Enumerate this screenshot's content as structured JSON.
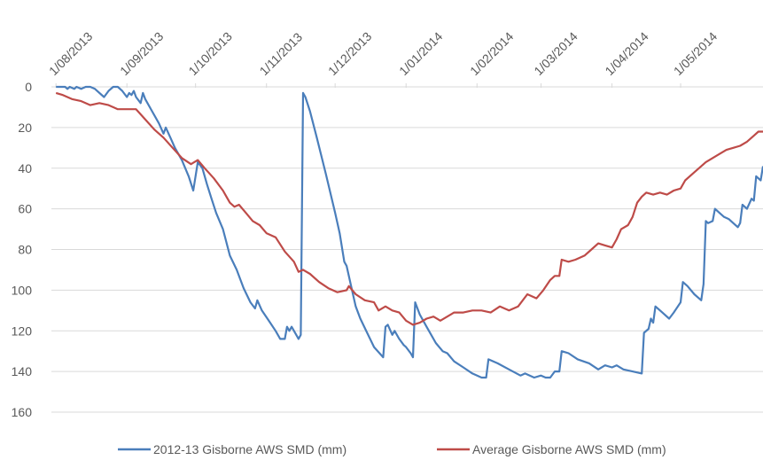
{
  "chart_data": {
    "type": "line",
    "title": "",
    "xlabel": "",
    "ylabel": "",
    "x_ticks": [
      "1/08/2013",
      "1/09/2013",
      "1/10/2013",
      "1/11/2013",
      "1/12/2013",
      "1/01/2014",
      "1/02/2014",
      "1/03/2014",
      "1/04/2014",
      "1/05/2014"
    ],
    "y_ticks": [
      0,
      20,
      40,
      60,
      80,
      100,
      120,
      140,
      160
    ],
    "ylim": [
      0,
      160
    ],
    "y_reversed": true,
    "grid": "horizontal",
    "legend_position": "bottom",
    "series": [
      {
        "name": "2012-13 Gisborne AWS SMD (mm)",
        "color": "#4a7ebb",
        "points": [
          [
            "2013-08-01",
            0
          ],
          [
            "2013-08-05",
            0
          ],
          [
            "2013-08-06",
            1
          ],
          [
            "2013-08-07",
            0
          ],
          [
            "2013-08-09",
            1
          ],
          [
            "2013-08-10",
            0
          ],
          [
            "2013-08-11",
            0.5
          ],
          [
            "2013-08-12",
            1
          ],
          [
            "2013-08-14",
            0
          ],
          [
            "2013-08-16",
            0
          ],
          [
            "2013-08-18",
            1
          ],
          [
            "2013-08-22",
            5
          ],
          [
            "2013-08-24",
            2
          ],
          [
            "2013-08-26",
            0
          ],
          [
            "2013-08-28",
            0
          ],
          [
            "2013-08-30",
            2
          ],
          [
            "2013-09-01",
            5
          ],
          [
            "2013-09-02",
            3
          ],
          [
            "2013-09-03",
            4
          ],
          [
            "2013-09-04",
            2
          ],
          [
            "2013-09-05",
            5
          ],
          [
            "2013-09-07",
            8
          ],
          [
            "2013-09-08",
            3
          ],
          [
            "2013-09-09",
            6
          ],
          [
            "2013-09-12",
            12
          ],
          [
            "2013-09-15",
            18
          ],
          [
            "2013-09-17",
            23
          ],
          [
            "2013-09-18",
            20
          ],
          [
            "2013-09-20",
            25
          ],
          [
            "2013-09-22",
            30
          ],
          [
            "2013-09-25",
            36
          ],
          [
            "2013-09-28",
            44
          ],
          [
            "2013-09-30",
            51
          ],
          [
            "2013-10-02",
            37
          ],
          [
            "2013-10-04",
            40
          ],
          [
            "2013-10-06",
            48
          ],
          [
            "2013-10-08",
            55
          ],
          [
            "2013-10-10",
            62
          ],
          [
            "2013-10-13",
            70
          ],
          [
            "2013-10-16",
            83
          ],
          [
            "2013-10-19",
            90
          ],
          [
            "2013-10-22",
            99
          ],
          [
            "2013-10-25",
            106
          ],
          [
            "2013-10-27",
            109
          ],
          [
            "2013-10-28",
            105
          ],
          [
            "2013-10-30",
            110
          ],
          [
            "2013-11-02",
            115
          ],
          [
            "2013-11-05",
            120
          ],
          [
            "2013-11-07",
            124
          ],
          [
            "2013-11-09",
            124
          ],
          [
            "2013-11-10",
            118
          ],
          [
            "2013-11-11",
            120
          ],
          [
            "2013-11-12",
            118
          ],
          [
            "2013-11-14",
            122
          ],
          [
            "2013-11-15",
            124
          ],
          [
            "2013-11-16",
            122
          ],
          [
            "2013-11-17",
            3
          ],
          [
            "2013-11-18",
            5
          ],
          [
            "2013-11-20",
            12
          ],
          [
            "2013-11-23",
            25
          ],
          [
            "2013-11-27",
            43
          ],
          [
            "2013-12-01",
            62
          ],
          [
            "2013-12-03",
            72
          ],
          [
            "2013-12-05",
            86
          ],
          [
            "2013-12-06",
            88
          ],
          [
            "2013-12-08",
            98
          ],
          [
            "2013-12-10",
            108
          ],
          [
            "2013-12-12",
            114
          ],
          [
            "2013-12-15",
            121
          ],
          [
            "2013-12-18",
            128
          ],
          [
            "2013-12-22",
            133
          ],
          [
            "2013-12-23",
            118
          ],
          [
            "2013-12-24",
            117
          ],
          [
            "2013-12-26",
            122
          ],
          [
            "2013-12-27",
            120
          ],
          [
            "2013-12-29",
            124
          ],
          [
            "2013-12-31",
            127
          ],
          [
            "2014-01-01",
            128
          ],
          [
            "2014-01-03",
            131
          ],
          [
            "2014-01-04",
            133
          ],
          [
            "2014-01-05",
            106
          ],
          [
            "2014-01-07",
            112
          ],
          [
            "2014-01-10",
            118
          ],
          [
            "2014-01-14",
            126
          ],
          [
            "2014-01-17",
            130
          ],
          [
            "2014-01-19",
            131
          ],
          [
            "2014-01-22",
            135
          ],
          [
            "2014-01-26",
            138
          ],
          [
            "2014-01-30",
            141
          ],
          [
            "2014-02-03",
            143
          ],
          [
            "2014-02-05",
            143
          ],
          [
            "2014-02-06",
            134
          ],
          [
            "2014-02-10",
            136
          ],
          [
            "2014-02-15",
            139
          ],
          [
            "2014-02-20",
            142
          ],
          [
            "2014-02-22",
            141
          ],
          [
            "2014-02-26",
            143
          ],
          [
            "2014-03-01",
            142
          ],
          [
            "2014-03-03",
            143
          ],
          [
            "2014-03-05",
            143
          ],
          [
            "2014-03-07",
            140
          ],
          [
            "2014-03-09",
            140
          ],
          [
            "2014-03-10",
            130
          ],
          [
            "2014-03-13",
            131
          ],
          [
            "2014-03-17",
            134
          ],
          [
            "2014-03-22",
            136
          ],
          [
            "2014-03-26",
            139
          ],
          [
            "2014-03-29",
            137
          ],
          [
            "2014-04-01",
            138
          ],
          [
            "2014-04-03",
            137
          ],
          [
            "2014-04-06",
            139
          ],
          [
            "2014-04-10",
            140
          ],
          [
            "2014-04-14",
            141
          ],
          [
            "2014-04-15",
            121
          ],
          [
            "2014-04-17",
            119
          ],
          [
            "2014-04-18",
            114
          ],
          [
            "2014-04-19",
            116
          ],
          [
            "2014-04-20",
            108
          ],
          [
            "2014-04-23",
            111
          ],
          [
            "2014-04-26",
            114
          ],
          [
            "2014-04-28",
            111
          ],
          [
            "2014-05-01",
            106
          ],
          [
            "2014-05-02",
            96
          ],
          [
            "2014-05-04",
            98
          ],
          [
            "2014-05-07",
            102
          ],
          [
            "2014-05-10",
            105
          ],
          [
            "2014-05-11",
            97
          ],
          [
            "2014-05-12",
            66
          ],
          [
            "2014-05-13",
            67
          ],
          [
            "2014-05-15",
            66
          ],
          [
            "2014-05-16",
            60
          ],
          [
            "2014-05-18",
            62
          ],
          [
            "2014-05-20",
            64
          ],
          [
            "2014-05-22",
            65
          ],
          [
            "2014-05-24",
            67
          ],
          [
            "2014-05-26",
            69
          ],
          [
            "2014-05-27",
            67
          ],
          [
            "2014-05-28",
            58
          ],
          [
            "2014-05-30",
            60
          ],
          [
            "2014-06-01",
            55
          ],
          [
            "2014-06-02",
            56
          ],
          [
            "2014-06-03",
            44
          ],
          [
            "2014-06-04",
            45
          ],
          [
            "2014-06-05",
            46
          ],
          [
            "2014-06-06",
            39
          ]
        ]
      },
      {
        "name": "Average Gisborne AWS SMD (mm)",
        "color": "#be4b48",
        "points": [
          [
            "2013-08-01",
            3
          ],
          [
            "2013-08-04",
            4
          ],
          [
            "2013-08-08",
            6
          ],
          [
            "2013-08-12",
            7
          ],
          [
            "2013-08-16",
            9
          ],
          [
            "2013-08-20",
            8
          ],
          [
            "2013-08-24",
            9
          ],
          [
            "2013-08-28",
            11
          ],
          [
            "2013-09-01",
            11
          ],
          [
            "2013-09-05",
            11
          ],
          [
            "2013-09-09",
            16
          ],
          [
            "2013-09-13",
            21
          ],
          [
            "2013-09-17",
            25
          ],
          [
            "2013-09-21",
            30
          ],
          [
            "2013-09-25",
            35
          ],
          [
            "2013-09-29",
            38
          ],
          [
            "2013-10-02",
            36
          ],
          [
            "2013-10-05",
            40
          ],
          [
            "2013-10-09",
            45
          ],
          [
            "2013-10-13",
            51
          ],
          [
            "2013-10-16",
            57
          ],
          [
            "2013-10-18",
            59
          ],
          [
            "2013-10-20",
            58
          ],
          [
            "2013-10-23",
            62
          ],
          [
            "2013-10-26",
            66
          ],
          [
            "2013-10-29",
            68
          ],
          [
            "2013-11-01",
            72
          ],
          [
            "2013-11-05",
            74
          ],
          [
            "2013-11-09",
            81
          ],
          [
            "2013-11-13",
            86
          ],
          [
            "2013-11-15",
            91
          ],
          [
            "2013-11-17",
            90
          ],
          [
            "2013-11-20",
            92
          ],
          [
            "2013-11-24",
            96
          ],
          [
            "2013-11-28",
            99
          ],
          [
            "2013-12-02",
            101
          ],
          [
            "2013-12-06",
            100
          ],
          [
            "2013-12-07",
            98
          ],
          [
            "2013-12-10",
            102
          ],
          [
            "2013-12-14",
            105
          ],
          [
            "2013-12-18",
            106
          ],
          [
            "2013-12-20",
            110
          ],
          [
            "2013-12-23",
            108
          ],
          [
            "2013-12-26",
            110
          ],
          [
            "2013-12-29",
            111
          ],
          [
            "2014-01-01",
            115
          ],
          [
            "2014-01-04",
            117
          ],
          [
            "2014-01-07",
            116
          ],
          [
            "2014-01-10",
            114
          ],
          [
            "2014-01-13",
            113
          ],
          [
            "2014-01-16",
            115
          ],
          [
            "2014-01-19",
            113
          ],
          [
            "2014-01-22",
            111
          ],
          [
            "2014-01-26",
            111
          ],
          [
            "2014-01-30",
            110
          ],
          [
            "2014-02-03",
            110
          ],
          [
            "2014-02-07",
            111
          ],
          [
            "2014-02-11",
            108
          ],
          [
            "2014-02-15",
            110
          ],
          [
            "2014-02-19",
            108
          ],
          [
            "2014-02-23",
            102
          ],
          [
            "2014-02-27",
            104
          ],
          [
            "2014-03-02",
            100
          ],
          [
            "2014-03-05",
            95
          ],
          [
            "2014-03-07",
            93
          ],
          [
            "2014-03-09",
            93
          ],
          [
            "2014-03-10",
            85
          ],
          [
            "2014-03-13",
            86
          ],
          [
            "2014-03-16",
            85
          ],
          [
            "2014-03-20",
            83
          ],
          [
            "2014-03-23",
            80
          ],
          [
            "2014-03-26",
            77
          ],
          [
            "2014-03-29",
            78
          ],
          [
            "2014-04-01",
            79
          ],
          [
            "2014-04-03",
            75
          ],
          [
            "2014-04-05",
            70
          ],
          [
            "2014-04-08",
            68
          ],
          [
            "2014-04-10",
            64
          ],
          [
            "2014-04-12",
            57
          ],
          [
            "2014-04-14",
            54
          ],
          [
            "2014-04-16",
            52
          ],
          [
            "2014-04-19",
            53
          ],
          [
            "2014-04-22",
            52
          ],
          [
            "2014-04-25",
            53
          ],
          [
            "2014-04-28",
            51
          ],
          [
            "2014-05-01",
            50
          ],
          [
            "2014-05-03",
            46
          ],
          [
            "2014-05-06",
            43
          ],
          [
            "2014-05-09",
            40
          ],
          [
            "2014-05-12",
            37
          ],
          [
            "2014-05-15",
            35
          ],
          [
            "2014-05-18",
            33
          ],
          [
            "2014-05-21",
            31
          ],
          [
            "2014-05-24",
            30
          ],
          [
            "2014-05-27",
            29
          ],
          [
            "2014-05-30",
            27
          ],
          [
            "2014-06-02",
            24
          ],
          [
            "2014-06-04",
            22
          ],
          [
            "2014-06-06",
            22
          ]
        ]
      }
    ]
  }
}
